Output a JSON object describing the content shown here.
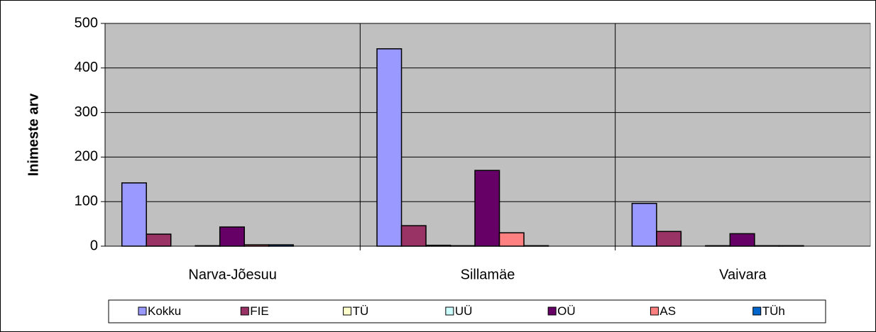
{
  "chart_data": {
    "type": "bar",
    "y_label": "Inimeste arv",
    "categories": [
      "Narva-Jõesuu",
      "Sillamäe",
      "Vaivara"
    ],
    "series": [
      {
        "name": "Kokku",
        "color": "#9999ff",
        "values": [
          142,
          443,
          96
        ]
      },
      {
        "name": "FIE",
        "color": "#993366",
        "values": [
          27,
          46,
          33
        ]
      },
      {
        "name": "TÜ",
        "color": "#ffffcc",
        "values": [
          0,
          2,
          0
        ]
      },
      {
        "name": "UÜ",
        "color": "#ccffff",
        "values": [
          1,
          1,
          1
        ]
      },
      {
        "name": "OÜ",
        "color": "#660066",
        "values": [
          43,
          170,
          28
        ]
      },
      {
        "name": "AS",
        "color": "#ff8080",
        "values": [
          3,
          30,
          1
        ]
      },
      {
        "name": "TÜh",
        "color": "#0066cc",
        "values": [
          3,
          1,
          1
        ]
      }
    ],
    "ylim": [
      0,
      500
    ],
    "yticks": [
      0,
      100,
      200,
      300,
      400,
      500
    ],
    "grid": true,
    "legend": "bottom"
  }
}
